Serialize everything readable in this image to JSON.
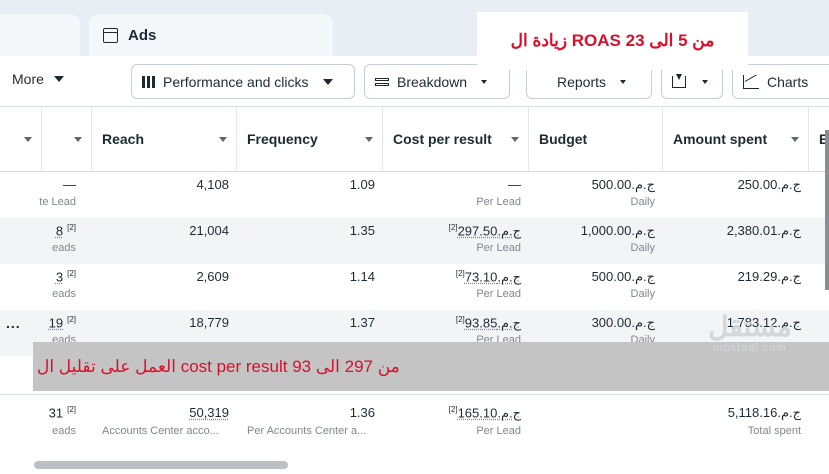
{
  "tabs": {
    "ads_label": "Ads"
  },
  "annotation_top": "من 5 الى 23 ROAS زيادة ال",
  "annotation_middle": "من 297 الى  93 cost per result العمل على تقليل ال",
  "toolbar": {
    "more_label": "More",
    "performance_label": "Performance and clicks",
    "breakdown_label": "Breakdown",
    "reports_label": "Reports",
    "charts_label": "Charts"
  },
  "columns": [
    "Reach",
    "Frequency",
    "Cost per result",
    "Budget",
    "Amount spent",
    "E"
  ],
  "rows": [
    {
      "results": "—",
      "results_sub": "te Lead",
      "reach": "4,108",
      "frequency": "1.09",
      "cost": "—",
      "cost_sub": "Per Lead",
      "budget": "ج.م.500.00",
      "budget_sub": "Daily",
      "spent": "ج.م.250.00"
    },
    {
      "results": "8",
      "results_sup": "[2]",
      "results_sub": "eads",
      "reach": "21,004",
      "frequency": "1.35",
      "cost": "ج.م.297.50",
      "cost_sup": "[2]",
      "cost_sub": "Per Lead",
      "budget": "ج.م.1,000.00",
      "budget_sub": "Daily",
      "spent": "ج.م.2,380.01"
    },
    {
      "results": "3",
      "results_sup": "[2]",
      "results_sub": "eads",
      "reach": "2,609",
      "frequency": "1.14",
      "cost": "ج.م.73.10",
      "cost_sup": "[2]",
      "cost_sub": "Per Lead",
      "budget": "ج.م.500.00",
      "budget_sub": "Daily",
      "spent": "ج.م.219.29"
    },
    {
      "results": "19",
      "results_sup": "[2]",
      "results_sub": "eads",
      "more": "...",
      "reach": "18,779",
      "frequency": "1.37",
      "cost": "ج.م.93.85",
      "cost_sup": "[2]",
      "cost_sub": "Per Lead",
      "budget": "ج.م.300.00",
      "budget_sub": "Daily",
      "spent": "ج.م.1,783.12"
    }
  ],
  "total": {
    "results": "31",
    "results_sup": "[2]",
    "results_sub": "eads",
    "reach": "50,319",
    "reach_sub": "Accounts Center acco...",
    "frequency": "1.36",
    "frequency_sub": "Per Accounts Center a...",
    "cost": "ج.م.165.10",
    "cost_sup": "[2]",
    "cost_sub": "Per Lead",
    "spent": "ج.م.5,118.16",
    "spent_sub": "Total spent"
  },
  "watermark": {
    "line1": "مستقل",
    "line2": "mostaql.com"
  }
}
